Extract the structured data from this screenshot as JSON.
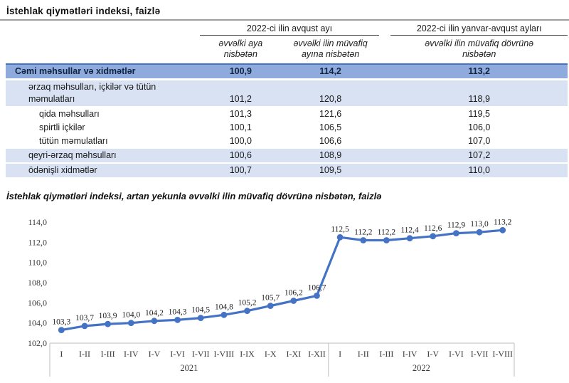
{
  "table": {
    "title": "İstehlak qiymətləri indeksi, faizlə",
    "col_groups": [
      {
        "label": "2022-ci ilin avqust ayı"
      },
      {
        "label": "2022-ci ilin yanvar-avqust ayları"
      }
    ],
    "sub_cols": [
      "əvvəlki aya nisbətən",
      "əvvəlki ilin müvafiq ayına nisbətən",
      "əvvəlki ilin müvafiq dövrünə nisbətən"
    ],
    "rows": [
      {
        "label": "Cəmi məhsullar və xidmətlər",
        "values": [
          "100,9",
          "114,2",
          "113,2"
        ],
        "level": 0,
        "style": "total"
      },
      {
        "label": "ərzaq məhsulları, içkilər və tütün məmulatları",
        "values": [
          "101,2",
          "120,8",
          "118,9"
        ],
        "level": 1,
        "style": "band"
      },
      {
        "label": "qida məhsulları",
        "values": [
          "101,3",
          "121,6",
          "119,5"
        ],
        "level": 2,
        "style": "plain"
      },
      {
        "label": "spirtli içkilər",
        "values": [
          "100,1",
          "106,5",
          "106,0"
        ],
        "level": 2,
        "style": "plain"
      },
      {
        "label": "tütün məmulatları",
        "values": [
          "100,0",
          "106,6",
          "107,0"
        ],
        "level": 2,
        "style": "plain"
      },
      {
        "label": "qeyri-ərzaq məhsulları",
        "values": [
          "100,6",
          "108,9",
          "107,2"
        ],
        "level": 1,
        "style": "band"
      },
      {
        "label": "ödənişli xidmətlər",
        "values": [
          "100,7",
          "109,5",
          "110,0"
        ],
        "level": 1,
        "style": "band"
      }
    ],
    "colors": {
      "total_row_bg": "#8FAADC",
      "band_row_bg": "#D9E2F3",
      "total_row_border": "#4472C4"
    }
  },
  "chart_data": {
    "type": "line",
    "title": "İstehlak qiymətləri indeksi, artan yekunla əvvəlki ilin müvafiq dövrünə nisbətən, faizlə",
    "categories": [
      "I",
      "I-II",
      "I-III",
      "I-IV",
      "I-V",
      "I-VI",
      "I-VII",
      "I-VIII",
      "I-IX",
      "I-X",
      "I-XI",
      "I-XII",
      "I",
      "I-II",
      "I-III",
      "I-IV",
      "I-V",
      "I-VI",
      "I-VII",
      "I-VIII"
    ],
    "category_groups": [
      {
        "label": "2021",
        "count": 12
      },
      {
        "label": "2022",
        "count": 8
      }
    ],
    "values": [
      103.3,
      103.7,
      103.9,
      104.0,
      104.2,
      104.3,
      104.5,
      104.8,
      105.2,
      105.7,
      106.2,
      106.7,
      112.5,
      112.2,
      112.2,
      112.4,
      112.6,
      112.9,
      113.0,
      113.2
    ],
    "data_labels": [
      "103,3",
      "103,7",
      "103,9",
      "104,0",
      "104,2",
      "104,3",
      "104,5",
      "104,8",
      "105,2",
      "105,7",
      "106,2",
      "106,7",
      "112,5",
      "112,2",
      "112,2",
      "112,4",
      "112,6",
      "112,9",
      "113,0",
      "113,2"
    ],
    "ylim": [
      102,
      114
    ],
    "ytick_step": 2,
    "ytick_labels": [
      "102,0",
      "104,0",
      "106,0",
      "108,0",
      "110,0",
      "112,0",
      "114,0"
    ],
    "grid": false,
    "legend": "none",
    "line_color": "#4472C4",
    "marker": "circle"
  }
}
